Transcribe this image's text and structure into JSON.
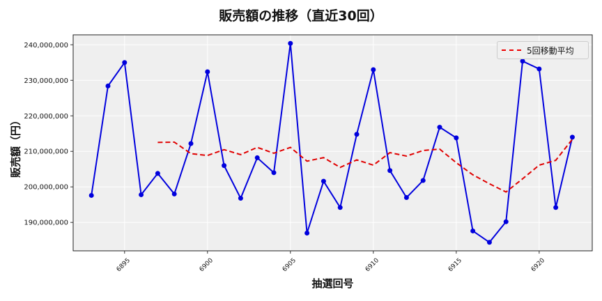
{
  "chart_data": {
    "type": "line",
    "title": "販売額の推移（直近30回）",
    "xlabel": "抽選回号",
    "ylabel": "販売額（円）",
    "x": [
      6893,
      6894,
      6895,
      6896,
      6897,
      6898,
      6899,
      6900,
      6901,
      6902,
      6903,
      6904,
      6905,
      6906,
      6907,
      6908,
      6909,
      6910,
      6911,
      6912,
      6913,
      6914,
      6915,
      6916,
      6917,
      6918,
      6919,
      6920,
      6921,
      6922
    ],
    "series": [
      {
        "name": "販売額",
        "color": "#0000dd",
        "style": "solid-with-markers",
        "values": [
          197600000,
          228400000,
          235000000,
          197800000,
          203800000,
          198000000,
          212200000,
          232400000,
          206000000,
          196800000,
          208200000,
          204000000,
          240400000,
          187000000,
          201600000,
          194200000,
          214800000,
          233000000,
          204600000,
          197000000,
          201800000,
          216800000,
          213800000,
          187600000,
          184400000,
          190200000,
          235400000,
          233200000,
          194200000,
          214000000
        ]
      },
      {
        "name": "5回移動平均",
        "color": "#e00000",
        "style": "dashed",
        "values": [
          null,
          null,
          null,
          null,
          212520000,
          212600000,
          209360000,
          208840000,
          210480000,
          209080000,
          211120000,
          209480000,
          211120000,
          207240000,
          208240000,
          205480000,
          207600000,
          206120000,
          209640000,
          208680000,
          210240000,
          210640000,
          206800000,
          203400000,
          200880000,
          198560000,
          202280000,
          206120000,
          207480000,
          213400000
        ]
      }
    ],
    "xticks": [
      6895,
      6900,
      6905,
      6910,
      6915,
      6920
    ],
    "yticks": [
      190000000,
      200000000,
      210000000,
      220000000,
      230000000,
      240000000
    ],
    "ytick_labels": [
      "190,000,000",
      "200,000,000",
      "210,000,000",
      "220,000,000",
      "230,000,000",
      "240,000,000"
    ],
    "xlim": [
      6891.9,
      6923.2
    ],
    "ylim": [
      182000000,
      242800000
    ],
    "grid": true,
    "legend": {
      "entries": [
        "5回移動平均"
      ],
      "position": "upper right"
    }
  },
  "labels": {
    "title": "販売額の推移（直近30回）",
    "xlabel": "抽選回号",
    "ylabel": "販売額（円）",
    "legend_ma": "5回移動平均"
  }
}
